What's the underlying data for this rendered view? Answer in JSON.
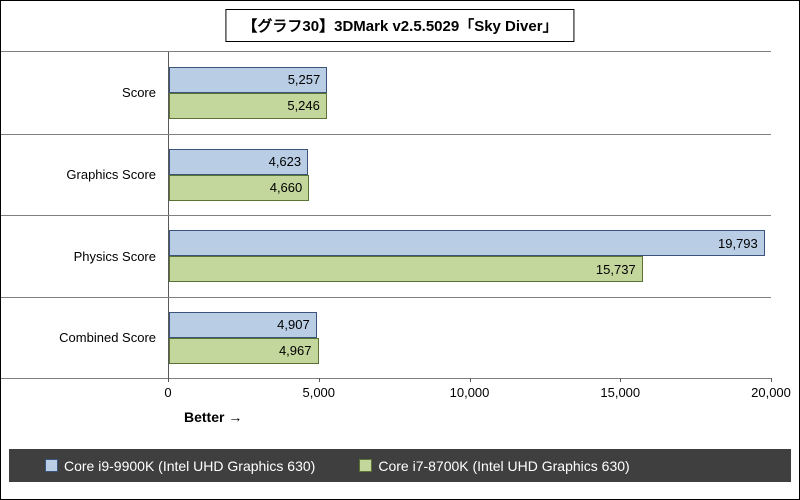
{
  "title": "【グラフ30】3DMark v2.5.5029「Sky Diver」",
  "chart_data": {
    "type": "bar",
    "orientation": "horizontal",
    "title": "【グラフ30】3DMark v2.5.5029「Sky Diver」",
    "categories": [
      "Score",
      "Graphics Score",
      "Physics Score",
      "Combined Score"
    ],
    "series": [
      {
        "name": "Core i9-9900K (Intel UHD Graphics 630)",
        "values": [
          5257,
          4623,
          19793,
          4907
        ],
        "fill": "#b9cde5",
        "border": "#3a547b"
      },
      {
        "name": "Core i7-8700K (Intel UHD Graphics 630)",
        "values": [
          5246,
          4660,
          15737,
          4967
        ],
        "fill": "#c3d69b",
        "border": "#5a7233"
      }
    ],
    "value_labels": [
      [
        "5,257",
        "4,623",
        "19,793",
        "4,907"
      ],
      [
        "5,246",
        "4,660",
        "15,737",
        "4,967"
      ]
    ],
    "xlim": [
      0,
      20000
    ],
    "x_ticks": [
      "0",
      "5,000",
      "10,000",
      "15,000",
      "20,000"
    ],
    "better_label": "Better →",
    "legend_position": "bottom",
    "grid": "category-separator-lines"
  },
  "legend": {
    "background": "#3f3f3f",
    "text_color": "#ffffff"
  }
}
